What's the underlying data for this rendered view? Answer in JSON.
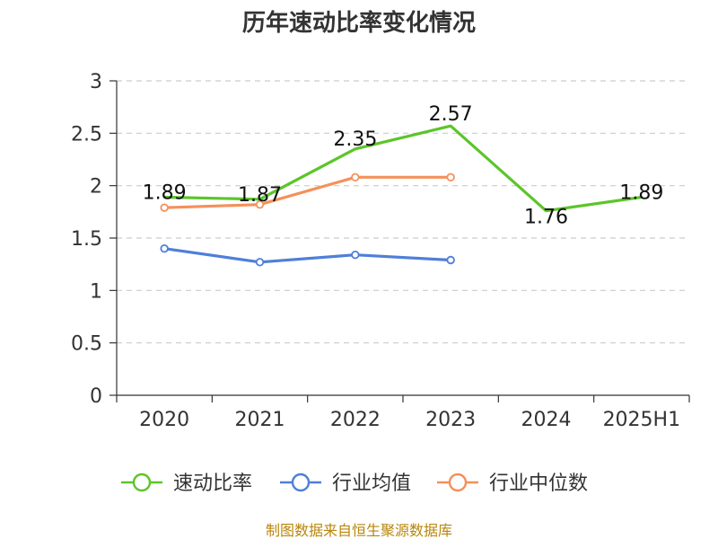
{
  "chart_data": {
    "type": "line",
    "title": "历年速动比率变化情况",
    "categories": [
      "2020",
      "2021",
      "2022",
      "2023",
      "2024",
      "2025H1"
    ],
    "ylim": [
      0,
      3
    ],
    "yticks": [
      "0",
      "0.5",
      "1",
      "1.5",
      "2",
      "2.5",
      "3"
    ],
    "grid": true,
    "legend_position": "bottom",
    "series": [
      {
        "name": "速动比率",
        "color": "#5cc52a",
        "values": [
          1.89,
          1.87,
          2.35,
          2.57,
          1.76,
          1.89
        ],
        "labels": [
          "1.89",
          "1.87",
          "2.35",
          "2.57",
          "1.76",
          "1.89"
        ]
      },
      {
        "name": "行业均值",
        "color": "#4f7fd9",
        "values": [
          1.4,
          1.27,
          1.34,
          1.29,
          null,
          null
        ]
      },
      {
        "name": "行业中位数",
        "color": "#f5905a",
        "values": [
          1.79,
          1.82,
          2.08,
          2.08,
          null,
          null
        ]
      }
    ],
    "source": "制图数据来自恒生聚源数据库"
  }
}
